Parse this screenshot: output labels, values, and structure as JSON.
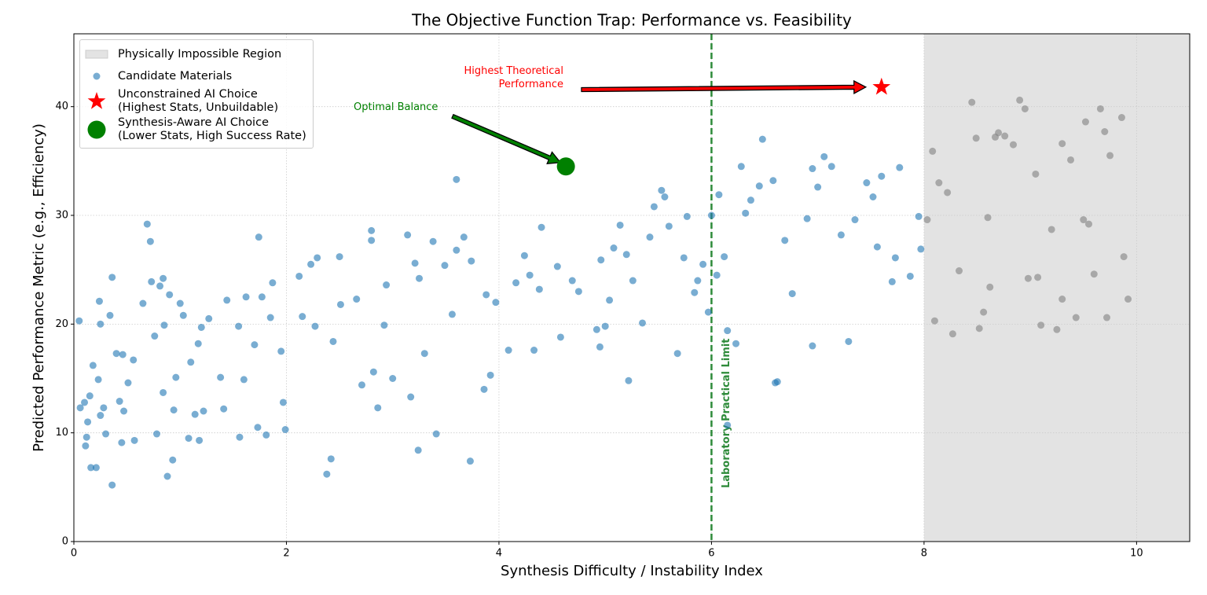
{
  "chart_data": {
    "type": "scatter",
    "title": "The Objective Function Trap: Performance vs. Feasibility",
    "x_label": "Synthesis Difficulty / Instability Index",
    "y_label": "Predicted Performance Metric (e.g., Efficiency)",
    "xlim": [
      0,
      10.5
    ],
    "ylim": [
      0,
      46.7
    ],
    "xticks": [
      0,
      2,
      4,
      6,
      8,
      10
    ],
    "yticks": [
      0,
      10,
      20,
      30,
      40
    ],
    "grid": true,
    "legend": "upper left",
    "region": {
      "label": "Physically Impossible Region",
      "xlim": [
        8,
        10.5
      ],
      "color": "#e3e3e3",
      "point_color": "#808080"
    },
    "vline": {
      "x": 6,
      "label": "Laboratory Practical Limit",
      "color": "#2e8b3a"
    },
    "series": [
      {
        "name": "Candidate Materials",
        "color": "#1f77b4",
        "marker": "circle",
        "x": [
          0.05,
          0.06,
          0.1,
          0.11,
          0.12,
          0.13,
          0.15,
          0.16,
          0.18,
          0.21,
          0.23,
          0.24,
          0.25,
          0.25,
          0.28,
          0.3,
          0.34,
          0.36,
          0.36,
          0.4,
          0.43,
          0.45,
          0.46,
          0.47,
          0.51,
          0.56,
          0.57,
          0.65,
          0.69,
          0.72,
          0.73,
          0.76,
          0.78,
          0.81,
          0.84,
          0.85,
          0.84,
          0.88,
          0.9,
          0.93,
          0.94,
          0.96,
          1.0,
          1.03,
          1.08,
          1.1,
          1.14,
          1.17,
          1.18,
          1.2,
          1.22,
          1.27,
          1.38,
          1.41,
          1.44,
          1.55,
          1.56,
          1.6,
          1.62,
          1.7,
          1.74,
          1.73,
          1.77,
          1.81,
          1.85,
          1.87,
          1.95,
          1.97,
          1.99,
          2.12,
          2.15,
          2.23,
          2.27,
          2.29,
          2.38,
          2.42,
          2.44,
          2.5,
          2.51,
          2.66,
          2.71,
          2.8,
          2.8,
          2.82,
          2.86,
          2.92,
          2.94,
          3.0,
          3.14,
          3.17,
          3.21,
          3.24,
          3.25,
          3.3,
          3.38,
          3.41,
          3.49,
          3.56,
          3.6,
          3.6,
          3.67,
          3.73,
          3.74,
          3.86,
          3.88,
          3.92,
          3.97,
          4.09,
          4.16,
          4.24,
          4.29,
          4.33,
          4.38,
          4.4,
          4.55,
          4.58,
          4.69,
          4.75,
          4.92,
          4.95,
          4.96,
          5.0,
          5.04,
          5.08,
          5.14,
          5.2,
          5.22,
          5.26,
          5.35,
          5.42,
          5.46,
          5.53,
          5.56,
          5.6,
          5.68,
          5.74,
          5.77,
          5.84,
          5.87,
          5.92,
          5.97,
          6.0,
          6.05,
          6.07,
          6.12,
          6.15,
          6.15,
          6.23,
          6.28,
          6.32,
          6.37,
          6.45,
          6.48,
          6.58,
          6.6,
          6.62,
          6.69,
          6.76,
          6.9,
          6.95,
          6.95,
          7.0,
          7.06,
          7.13,
          7.22,
          7.29,
          7.35,
          7.46,
          7.52,
          7.56,
          7.6,
          7.7,
          7.73,
          7.77,
          7.87,
          7.95,
          7.97,
          8.03,
          8.08,
          8.14,
          8.22,
          8.45,
          8.49,
          8.6,
          8.67,
          8.7,
          8.76,
          8.84,
          8.9,
          8.95,
          9.05,
          9.3,
          9.38,
          9.52,
          9.66,
          9.7,
          9.75,
          9.86,
          9.88,
          9.92,
          8.1,
          8.27,
          8.52,
          9.1,
          9.25,
          9.43,
          9.72,
          8.56,
          8.62,
          8.33,
          9.07,
          9.3,
          9.55,
          9.6,
          8.98,
          9.2,
          9.5
        ],
        "values": [
          20.3,
          12.3,
          12.8,
          8.8,
          9.6,
          11,
          13.4,
          6.8,
          16.2,
          6.8,
          14.9,
          22.1,
          20,
          11.6,
          12.3,
          9.9,
          20.8,
          24.3,
          5.2,
          17.3,
          12.9,
          9.1,
          17.2,
          12,
          14.6,
          16.7,
          9.3,
          21.9,
          29.2,
          27.6,
          23.9,
          18.9,
          9.9,
          23.5,
          24.2,
          19.9,
          13.7,
          6,
          22.7,
          7.5,
          12.1,
          15.1,
          21.9,
          20.8,
          9.5,
          16.5,
          11.7,
          18.2,
          9.3,
          19.7,
          12,
          20.5,
          15.1,
          12.2,
          22.2,
          19.8,
          9.6,
          14.9,
          22.5,
          18.1,
          28,
          10.5,
          22.5,
          9.8,
          20.6,
          23.8,
          17.5,
          12.8,
          10.3,
          24.4,
          20.7,
          25.5,
          19.8,
          26.1,
          6.2,
          7.6,
          18.4,
          26.2,
          21.8,
          22.3,
          14.4,
          28.6,
          27.7,
          15.6,
          12.3,
          19.9,
          23.6,
          15,
          28.2,
          13.3,
          25.6,
          8.4,
          24.2,
          17.3,
          27.6,
          9.9,
          25.4,
          20.9,
          33.3,
          26.8,
          28,
          7.4,
          25.8,
          14,
          22.7,
          15.3,
          22,
          17.6,
          23.8,
          26.3,
          24.5,
          17.6,
          23.2,
          28.9,
          25.3,
          18.8,
          24,
          23,
          19.5,
          17.9,
          25.9,
          19.8,
          22.2,
          27,
          29.1,
          26.4,
          14.8,
          24,
          20.1,
          28,
          30.8,
          32.3,
          31.7,
          29,
          17.3,
          26.1,
          29.9,
          22.9,
          24,
          25.5,
          21.1,
          30,
          24.5,
          31.9,
          26.2,
          19.4,
          10.7,
          18.2,
          34.5,
          30.2,
          31.4,
          32.7,
          37,
          33.2,
          14.6,
          14.7,
          27.7,
          22.8,
          29.7,
          34.3,
          18,
          32.6,
          35.4,
          34.5,
          28.2,
          18.4,
          29.6,
          33,
          31.7,
          27.1,
          33.6,
          23.9,
          26.1,
          34.4,
          24.4,
          29.9,
          26.9,
          29.6,
          35.9,
          33,
          32.1,
          40.4,
          37.1,
          29.8,
          37.2,
          37.6,
          37.3,
          36.5,
          40.6,
          39.8,
          33.8,
          36.6,
          35.1,
          38.6,
          39.8,
          37.7,
          35.5,
          39,
          26.2,
          22.3,
          20.3,
          19.1,
          19.6,
          19.9,
          19.5,
          20.6,
          20.6,
          21.1,
          23.4,
          24.9,
          24.3,
          22.3,
          29.2,
          24.6,
          24.2,
          28.7,
          29.6
        ]
      },
      {
        "name": "Unconstrained AI Choice\n(Highest Stats, Unbuildable)",
        "color": "#ff0000",
        "marker": "star",
        "x": [
          7.6
        ],
        "values": [
          41.8
        ]
      },
      {
        "name": "Synthesis-Aware AI Choice\n(Lower Stats, High Success Rate)",
        "color": "#008000",
        "marker": "big-circle",
        "x": [
          4.63
        ],
        "values": [
          34.5
        ]
      }
    ],
    "annotations": [
      {
        "text": "Highest Theoretical\nPerformance",
        "color": "#ff0000"
      },
      {
        "text": "Optimal Balance",
        "color": "#008000"
      }
    ]
  }
}
